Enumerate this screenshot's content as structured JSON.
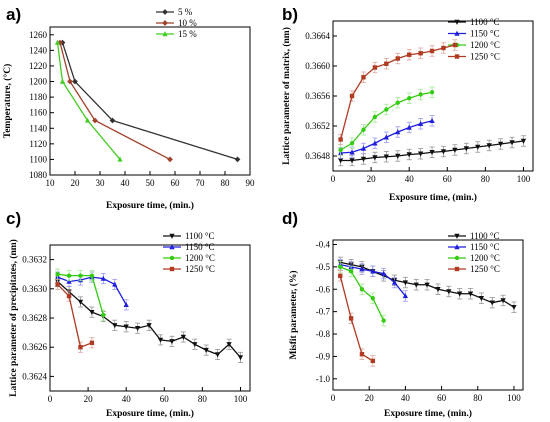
{
  "chart_data": [
    {
      "panel": "a)",
      "type": "line",
      "xlabel": "Exposure time, (min.)",
      "ylabel": "Temperature, (°C)",
      "xlim": [
        10,
        90
      ],
      "ylim": [
        1080,
        1270
      ],
      "xticks": [
        10,
        20,
        30,
        40,
        50,
        60,
        70,
        80,
        90
      ],
      "yticks": [
        1080,
        1100,
        1120,
        1140,
        1160,
        1180,
        1200,
        1220,
        1240,
        1260
      ],
      "legend_position": "top-right",
      "series": [
        {
          "name": "5 %",
          "color": "#333333",
          "marker": "diamond",
          "x": [
            15,
            20,
            35,
            85
          ],
          "y": [
            1250,
            1200,
            1150,
            1100
          ]
        },
        {
          "name": "10 %",
          "color": "#a0412c",
          "marker": "diamond",
          "x": [
            14,
            18,
            28,
            58
          ],
          "y": [
            1250,
            1200,
            1150,
            1100
          ]
        },
        {
          "name": "15 %",
          "color": "#44cc22",
          "marker": "triangle",
          "x": [
            13,
            15,
            25,
            38
          ],
          "y": [
            1250,
            1200,
            1150,
            1100
          ]
        }
      ]
    },
    {
      "panel": "b)",
      "type": "line",
      "xlabel": "Exposure time, (min.)",
      "ylabel": "Lattice parameter of matrix, (nm)",
      "xlim": [
        0,
        105
      ],
      "ylim": [
        0.3646,
        0.3666
      ],
      "xticks": [
        0,
        20,
        40,
        60,
        80,
        100
      ],
      "yticks": [
        "0.3648",
        "0.3652",
        "0.3656",
        "0.3660",
        "0.3664"
      ],
      "ytick_values": [
        0.3648,
        0.3652,
        0.3656,
        0.366,
        0.3664
      ],
      "legend_position": "top-right",
      "series": [
        {
          "name": "1100 °C",
          "color": "#111111",
          "marker": "triangle-down",
          "x": [
            4,
            10,
            16,
            22,
            28,
            34,
            40,
            46,
            52,
            58,
            64,
            70,
            76,
            82,
            88,
            94,
            100
          ],
          "y": [
            0.36474,
            0.36474,
            0.36476,
            0.36478,
            0.36479,
            0.3648,
            0.36482,
            0.36483,
            0.36485,
            0.36486,
            0.36488,
            0.3649,
            0.36492,
            0.36494,
            0.36496,
            0.36498,
            0.365
          ]
        },
        {
          "name": "1150 °C",
          "color": "#1f1fdd",
          "marker": "triangle-up",
          "x": [
            4,
            10,
            16,
            22,
            28,
            34,
            40,
            46,
            52
          ],
          "y": [
            0.36484,
            0.36485,
            0.3649,
            0.36497,
            0.36505,
            0.36512,
            0.36518,
            0.36523,
            0.36527
          ]
        },
        {
          "name": "1200 °C",
          "color": "#33cc11",
          "marker": "circle",
          "x": [
            4,
            10,
            16,
            22,
            28,
            34,
            40,
            46,
            52
          ],
          "y": [
            0.36488,
            0.36497,
            0.36515,
            0.36532,
            0.36542,
            0.36551,
            0.36557,
            0.36562,
            0.36565
          ]
        },
        {
          "name": "1250 °C",
          "color": "#b03a22",
          "marker": "square",
          "x": [
            4,
            10,
            16,
            22,
            28,
            34,
            40,
            46,
            52,
            58,
            64
          ],
          "y": [
            0.36502,
            0.3656,
            0.36585,
            0.36598,
            0.36603,
            0.3661,
            0.36615,
            0.36617,
            0.3662,
            0.36624,
            0.36628
          ]
        }
      ]
    },
    {
      "panel": "c)",
      "type": "line",
      "xlabel": "Exposure time, (min.)",
      "ylabel": "Lattice parameter of precipitates, (nm)",
      "xlim": [
        0,
        105
      ],
      "ylim": [
        0.3623,
        0.3633
      ],
      "xticks": [
        0,
        20,
        40,
        60,
        80,
        100
      ],
      "yticks": [
        "0.3624",
        "0.3626",
        "0.3628",
        "0.3630",
        "0.3632"
      ],
      "ytick_values": [
        0.3624,
        0.3626,
        0.3628,
        0.363,
        0.3632
      ],
      "legend_position": "top-right",
      "series": [
        {
          "name": "1100 °C",
          "color": "#111111",
          "marker": "triangle-down",
          "x": [
            4,
            10,
            16,
            22,
            28,
            34,
            40,
            46,
            52,
            58,
            64,
            70,
            76,
            82,
            88,
            94,
            100
          ],
          "y": [
            0.36305,
            0.36298,
            0.36291,
            0.36284,
            0.36281,
            0.36275,
            0.36274,
            0.36273,
            0.36275,
            0.36265,
            0.36264,
            0.36267,
            0.36262,
            0.36258,
            0.36255,
            0.36262,
            0.36253
          ]
        },
        {
          "name": "1150 °C",
          "color": "#1f1fdd",
          "marker": "triangle-up",
          "x": [
            4,
            10,
            16,
            22,
            28,
            34,
            40
          ],
          "y": [
            0.36308,
            0.36305,
            0.36306,
            0.36308,
            0.36307,
            0.36303,
            0.36289
          ]
        },
        {
          "name": "1200 °C",
          "color": "#33cc11",
          "marker": "circle",
          "x": [
            4,
            10,
            16,
            22,
            28
          ],
          "y": [
            0.3631,
            0.36309,
            0.36309,
            0.36309,
            0.36282
          ]
        },
        {
          "name": "1250 °C",
          "color": "#b03a22",
          "marker": "square",
          "x": [
            4,
            10,
            16,
            22
          ],
          "y": [
            0.36303,
            0.36295,
            0.3626,
            0.36263
          ]
        }
      ]
    },
    {
      "panel": "d)",
      "type": "line",
      "xlabel": "Exposure time, (min.)",
      "ylabel": "Misfit parameter, (%)",
      "xlim": [
        0,
        105
      ],
      "ylim": [
        -1.05,
        -0.38
      ],
      "xticks": [
        0,
        20,
        40,
        60,
        80,
        100
      ],
      "yticks": [
        "-1.0",
        "-0.9",
        "-0.8",
        "-0.7",
        "-0.6",
        "-0.5",
        "-0.4"
      ],
      "ytick_values": [
        -1.0,
        -0.9,
        -0.8,
        -0.7,
        -0.6,
        -0.5,
        -0.4
      ],
      "legend_position": "top-right",
      "series": [
        {
          "name": "1100 °C",
          "color": "#111111",
          "marker": "triangle-down",
          "x": [
            4,
            10,
            16,
            22,
            28,
            34,
            40,
            46,
            52,
            58,
            64,
            70,
            76,
            82,
            88,
            94,
            100
          ],
          "y": [
            -0.48,
            -0.49,
            -0.5,
            -0.52,
            -0.54,
            -0.56,
            -0.57,
            -0.58,
            -0.58,
            -0.6,
            -0.61,
            -0.62,
            -0.62,
            -0.64,
            -0.66,
            -0.65,
            -0.68
          ]
        },
        {
          "name": "1150 °C",
          "color": "#1f1fdd",
          "marker": "triangle-up",
          "x": [
            4,
            10,
            16,
            22,
            28,
            34,
            40
          ],
          "y": [
            -0.49,
            -0.5,
            -0.51,
            -0.52,
            -0.53,
            -0.57,
            -0.63
          ]
        },
        {
          "name": "1200 °C",
          "color": "#33cc11",
          "marker": "circle",
          "x": [
            4,
            10,
            16,
            22,
            28
          ],
          "y": [
            -0.5,
            -0.52,
            -0.6,
            -0.64,
            -0.74
          ]
        },
        {
          "name": "1250 °C",
          "color": "#b03a22",
          "marker": "square",
          "x": [
            4,
            10,
            16,
            22
          ],
          "y": [
            -0.54,
            -0.73,
            -0.89,
            -0.92
          ]
        }
      ]
    }
  ]
}
